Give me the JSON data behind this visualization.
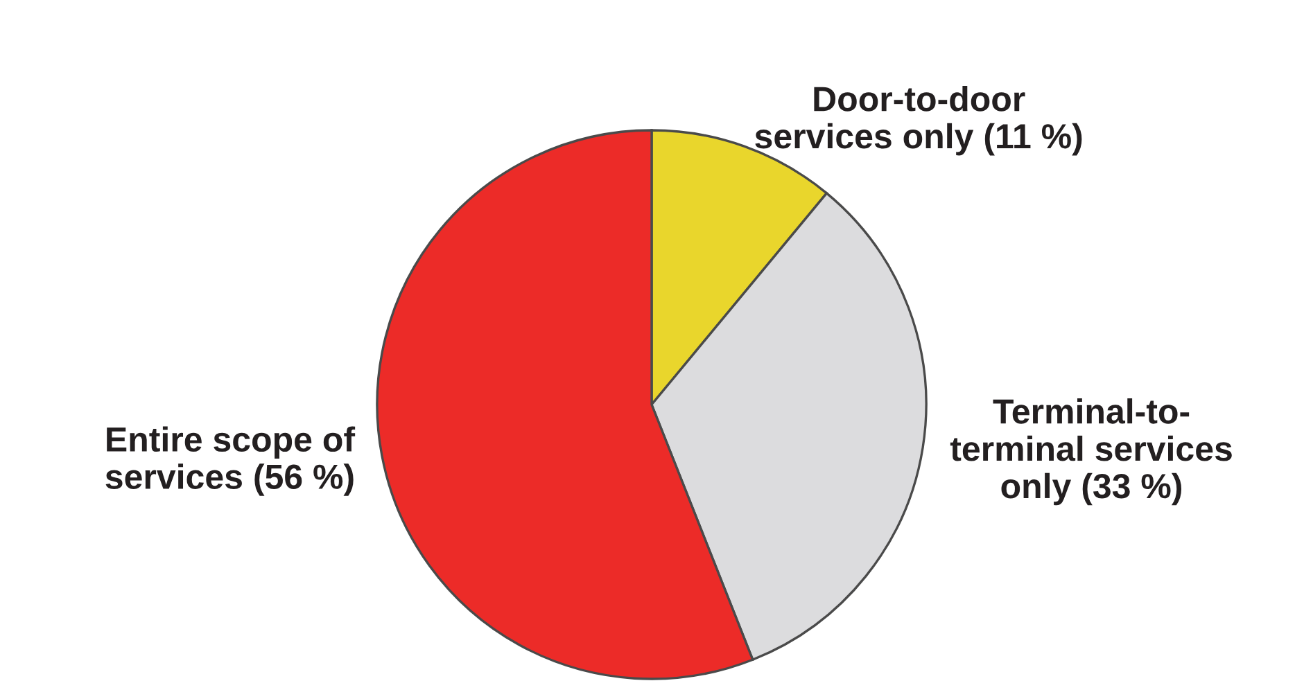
{
  "chart_data": {
    "type": "pie",
    "categories": [
      "Door-to-door\nservices only (11 %)",
      "Terminal-to-\nterminal services\nonly (33 %)",
      "Entire scope of\nservices (56 %)"
    ],
    "values": [
      11,
      33,
      56
    ],
    "colors": [
      "#e9d62c",
      "#dcdcde",
      "#ec2b28"
    ]
  }
}
